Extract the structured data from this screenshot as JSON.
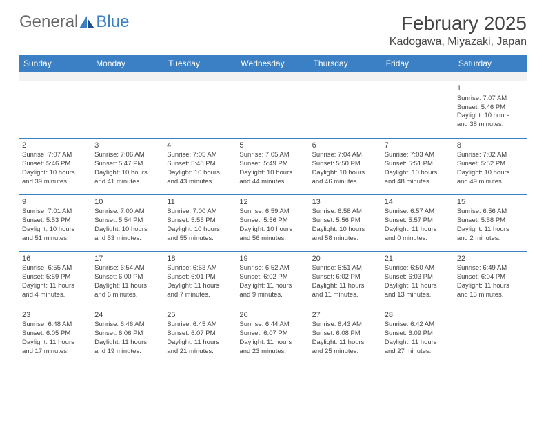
{
  "logo": {
    "text_general": "General",
    "text_blue": "Blue"
  },
  "header": {
    "month_title": "February 2025",
    "location": "Kadogawa, Miyazaki, Japan"
  },
  "colors": {
    "header_bg": "#3b7fc4",
    "header_text": "#ffffff",
    "divider": "#3b7fc4",
    "body_text": "#444444",
    "empty_row_bg": "#f2f2f2"
  },
  "day_names": [
    "Sunday",
    "Monday",
    "Tuesday",
    "Wednesday",
    "Thursday",
    "Friday",
    "Saturday"
  ],
  "weeks": [
    [
      null,
      null,
      null,
      null,
      null,
      null,
      {
        "n": "1",
        "sunrise": "Sunrise: 7:07 AM",
        "sunset": "Sunset: 5:46 PM",
        "daylight1": "Daylight: 10 hours",
        "daylight2": "and 38 minutes."
      }
    ],
    [
      {
        "n": "2",
        "sunrise": "Sunrise: 7:07 AM",
        "sunset": "Sunset: 5:46 PM",
        "daylight1": "Daylight: 10 hours",
        "daylight2": "and 39 minutes."
      },
      {
        "n": "3",
        "sunrise": "Sunrise: 7:06 AM",
        "sunset": "Sunset: 5:47 PM",
        "daylight1": "Daylight: 10 hours",
        "daylight2": "and 41 minutes."
      },
      {
        "n": "4",
        "sunrise": "Sunrise: 7:05 AM",
        "sunset": "Sunset: 5:48 PM",
        "daylight1": "Daylight: 10 hours",
        "daylight2": "and 43 minutes."
      },
      {
        "n": "5",
        "sunrise": "Sunrise: 7:05 AM",
        "sunset": "Sunset: 5:49 PM",
        "daylight1": "Daylight: 10 hours",
        "daylight2": "and 44 minutes."
      },
      {
        "n": "6",
        "sunrise": "Sunrise: 7:04 AM",
        "sunset": "Sunset: 5:50 PM",
        "daylight1": "Daylight: 10 hours",
        "daylight2": "and 46 minutes."
      },
      {
        "n": "7",
        "sunrise": "Sunrise: 7:03 AM",
        "sunset": "Sunset: 5:51 PM",
        "daylight1": "Daylight: 10 hours",
        "daylight2": "and 48 minutes."
      },
      {
        "n": "8",
        "sunrise": "Sunrise: 7:02 AM",
        "sunset": "Sunset: 5:52 PM",
        "daylight1": "Daylight: 10 hours",
        "daylight2": "and 49 minutes."
      }
    ],
    [
      {
        "n": "9",
        "sunrise": "Sunrise: 7:01 AM",
        "sunset": "Sunset: 5:53 PM",
        "daylight1": "Daylight: 10 hours",
        "daylight2": "and 51 minutes."
      },
      {
        "n": "10",
        "sunrise": "Sunrise: 7:00 AM",
        "sunset": "Sunset: 5:54 PM",
        "daylight1": "Daylight: 10 hours",
        "daylight2": "and 53 minutes."
      },
      {
        "n": "11",
        "sunrise": "Sunrise: 7:00 AM",
        "sunset": "Sunset: 5:55 PM",
        "daylight1": "Daylight: 10 hours",
        "daylight2": "and 55 minutes."
      },
      {
        "n": "12",
        "sunrise": "Sunrise: 6:59 AM",
        "sunset": "Sunset: 5:56 PM",
        "daylight1": "Daylight: 10 hours",
        "daylight2": "and 56 minutes."
      },
      {
        "n": "13",
        "sunrise": "Sunrise: 6:58 AM",
        "sunset": "Sunset: 5:56 PM",
        "daylight1": "Daylight: 10 hours",
        "daylight2": "and 58 minutes."
      },
      {
        "n": "14",
        "sunrise": "Sunrise: 6:57 AM",
        "sunset": "Sunset: 5:57 PM",
        "daylight1": "Daylight: 11 hours",
        "daylight2": "and 0 minutes."
      },
      {
        "n": "15",
        "sunrise": "Sunrise: 6:56 AM",
        "sunset": "Sunset: 5:58 PM",
        "daylight1": "Daylight: 11 hours",
        "daylight2": "and 2 minutes."
      }
    ],
    [
      {
        "n": "16",
        "sunrise": "Sunrise: 6:55 AM",
        "sunset": "Sunset: 5:59 PM",
        "daylight1": "Daylight: 11 hours",
        "daylight2": "and 4 minutes."
      },
      {
        "n": "17",
        "sunrise": "Sunrise: 6:54 AM",
        "sunset": "Sunset: 6:00 PM",
        "daylight1": "Daylight: 11 hours",
        "daylight2": "and 6 minutes."
      },
      {
        "n": "18",
        "sunrise": "Sunrise: 6:53 AM",
        "sunset": "Sunset: 6:01 PM",
        "daylight1": "Daylight: 11 hours",
        "daylight2": "and 7 minutes."
      },
      {
        "n": "19",
        "sunrise": "Sunrise: 6:52 AM",
        "sunset": "Sunset: 6:02 PM",
        "daylight1": "Daylight: 11 hours",
        "daylight2": "and 9 minutes."
      },
      {
        "n": "20",
        "sunrise": "Sunrise: 6:51 AM",
        "sunset": "Sunset: 6:02 PM",
        "daylight1": "Daylight: 11 hours",
        "daylight2": "and 11 minutes."
      },
      {
        "n": "21",
        "sunrise": "Sunrise: 6:50 AM",
        "sunset": "Sunset: 6:03 PM",
        "daylight1": "Daylight: 11 hours",
        "daylight2": "and 13 minutes."
      },
      {
        "n": "22",
        "sunrise": "Sunrise: 6:49 AM",
        "sunset": "Sunset: 6:04 PM",
        "daylight1": "Daylight: 11 hours",
        "daylight2": "and 15 minutes."
      }
    ],
    [
      {
        "n": "23",
        "sunrise": "Sunrise: 6:48 AM",
        "sunset": "Sunset: 6:05 PM",
        "daylight1": "Daylight: 11 hours",
        "daylight2": "and 17 minutes."
      },
      {
        "n": "24",
        "sunrise": "Sunrise: 6:46 AM",
        "sunset": "Sunset: 6:06 PM",
        "daylight1": "Daylight: 11 hours",
        "daylight2": "and 19 minutes."
      },
      {
        "n": "25",
        "sunrise": "Sunrise: 6:45 AM",
        "sunset": "Sunset: 6:07 PM",
        "daylight1": "Daylight: 11 hours",
        "daylight2": "and 21 minutes."
      },
      {
        "n": "26",
        "sunrise": "Sunrise: 6:44 AM",
        "sunset": "Sunset: 6:07 PM",
        "daylight1": "Daylight: 11 hours",
        "daylight2": "and 23 minutes."
      },
      {
        "n": "27",
        "sunrise": "Sunrise: 6:43 AM",
        "sunset": "Sunset: 6:08 PM",
        "daylight1": "Daylight: 11 hours",
        "daylight2": "and 25 minutes."
      },
      {
        "n": "28",
        "sunrise": "Sunrise: 6:42 AM",
        "sunset": "Sunset: 6:09 PM",
        "daylight1": "Daylight: 11 hours",
        "daylight2": "and 27 minutes."
      },
      null
    ]
  ]
}
